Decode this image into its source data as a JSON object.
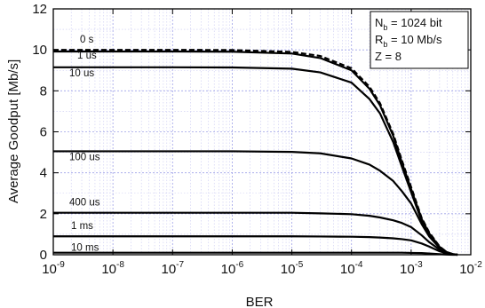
{
  "chart_data": {
    "type": "line",
    "xscale": "log",
    "xlim": [
      1e-09,
      0.01
    ],
    "ylim": [
      0,
      12
    ],
    "xlabel": "BER",
    "ylabel": "Average Goodput [Mb/s]",
    "grid": true,
    "xticks": [
      {
        "base": "10",
        "exp": "-9"
      },
      {
        "base": "10",
        "exp": "-8"
      },
      {
        "base": "10",
        "exp": "-7"
      },
      {
        "base": "10",
        "exp": "-6"
      },
      {
        "base": "10",
        "exp": "-5"
      },
      {
        "base": "10",
        "exp": "-4"
      },
      {
        "base": "10",
        "exp": "-3"
      },
      {
        "base": "10",
        "exp": "-2"
      }
    ],
    "yticks": [
      "0",
      "2",
      "4",
      "6",
      "8",
      "10",
      "12"
    ],
    "legend": {
      "placement": "top-right",
      "lines": [
        {
          "main": "N",
          "sub": "b",
          "rest": " = 1024 bit"
        },
        {
          "main": "R",
          "sub": "b",
          "rest": " = 10 Mb/s"
        },
        {
          "main": "Z = 8",
          "sub": "",
          "rest": ""
        }
      ]
    },
    "x": [
      1e-09,
      1e-08,
      1e-07,
      1e-06,
      1e-05,
      3e-05,
      0.0001,
      0.0002,
      0.0003,
      0.0005,
      0.0007,
      0.001,
      0.0015,
      0.002,
      0.003,
      0.004,
      0.005,
      0.006
    ],
    "series": [
      {
        "name": "0 s",
        "style": "dashed",
        "values": [
          10.0,
          10.0,
          10.0,
          9.99,
          9.9,
          9.7,
          9.1,
          8.2,
          7.4,
          5.9,
          4.6,
          3.3,
          1.8,
          1.1,
          0.4,
          0.12,
          0.03,
          0.0
        ]
      },
      {
        "name": "1 us",
        "style": "solid",
        "values": [
          9.92,
          9.92,
          9.92,
          9.91,
          9.82,
          9.6,
          9.0,
          8.1,
          7.3,
          5.8,
          4.5,
          3.2,
          1.75,
          1.05,
          0.38,
          0.12,
          0.03,
          0.0
        ]
      },
      {
        "name": "10 us",
        "style": "solid",
        "values": [
          9.15,
          9.15,
          9.15,
          9.14,
          9.08,
          8.9,
          8.4,
          7.6,
          6.9,
          5.5,
          4.3,
          3.05,
          1.65,
          1.0,
          0.36,
          0.11,
          0.03,
          0.0
        ]
      },
      {
        "name": "100 us",
        "style": "solid",
        "values": [
          5.05,
          5.05,
          5.05,
          5.05,
          5.02,
          4.95,
          4.7,
          4.4,
          4.1,
          3.6,
          3.1,
          2.5,
          1.5,
          0.9,
          0.33,
          0.1,
          0.03,
          0.0
        ]
      },
      {
        "name": "400 us",
        "style": "solid",
        "values": [
          2.05,
          2.05,
          2.05,
          2.05,
          2.05,
          2.02,
          1.98,
          1.9,
          1.82,
          1.68,
          1.55,
          1.35,
          0.95,
          0.62,
          0.25,
          0.08,
          0.02,
          0.0
        ]
      },
      {
        "name": "1 ms",
        "style": "solid",
        "values": [
          0.9,
          0.9,
          0.9,
          0.9,
          0.9,
          0.89,
          0.88,
          0.86,
          0.84,
          0.8,
          0.76,
          0.7,
          0.55,
          0.4,
          0.17,
          0.06,
          0.02,
          0.0
        ]
      },
      {
        "name": "10 ms",
        "style": "solid",
        "values": [
          0.1,
          0.1,
          0.1,
          0.1,
          0.1,
          0.1,
          0.1,
          0.1,
          0.1,
          0.1,
          0.1,
          0.09,
          0.08,
          0.06,
          0.03,
          0.01,
          0.0,
          0.0
        ]
      }
    ]
  }
}
